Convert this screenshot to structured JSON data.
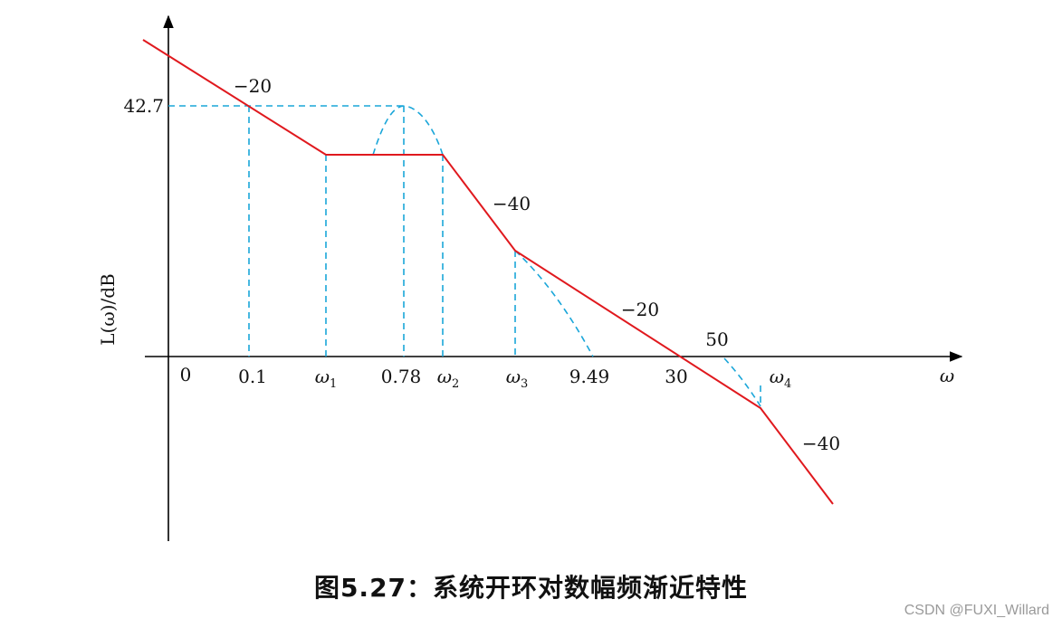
{
  "colors": {
    "axis": "#000000",
    "asymptote": "#e0191e",
    "actual": "#1aa6d9"
  },
  "axes": {
    "y_label": "L(ω)/dB",
    "x_label": "ω",
    "origin_label": "0"
  },
  "y_tick": "42.7",
  "x_ticks": [
    {
      "id": "t01",
      "text": "0.1"
    },
    {
      "id": "w1",
      "base": "ω",
      "sub": "1"
    },
    {
      "id": "t078",
      "text": "0.78"
    },
    {
      "id": "w2",
      "base": "ω",
      "sub": "2"
    },
    {
      "id": "w3",
      "base": "ω",
      "sub": "3"
    },
    {
      "id": "t949",
      "text": "9.49"
    },
    {
      "id": "t30",
      "text": "30"
    },
    {
      "id": "t50",
      "text": "50"
    },
    {
      "id": "w4",
      "base": "ω",
      "sub": "4"
    }
  ],
  "slopes": [
    "−20",
    "−40",
    "−20",
    "−40"
  ],
  "caption": "图5.27：系统开环对数幅频渐近特性",
  "watermark": "CSDN @FUXI_Willard"
}
